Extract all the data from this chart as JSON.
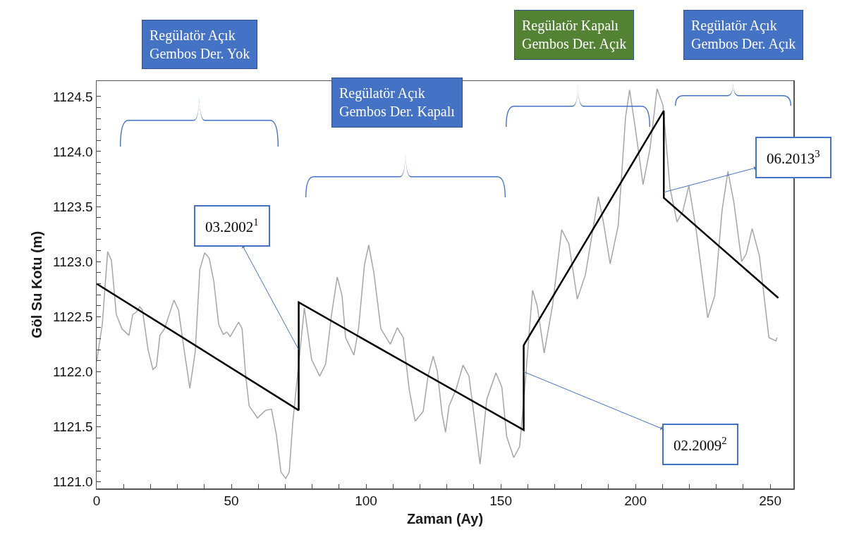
{
  "chart_data": {
    "type": "line",
    "xlabel": "Zaman (Ay)",
    "ylabel": "Göl Su Kotu (m)",
    "xlim": [
      0,
      258.6
    ],
    "ylim": [
      1120.94,
      1124.64
    ],
    "xticks": [
      0,
      {
        "value": 10,
        "label": null
      },
      {
        "value": 20,
        "label": null
      },
      {
        "value": 30,
        "label": null
      },
      {
        "value": 40,
        "label": null
      },
      50,
      {
        "value": 60,
        "label": null
      },
      {
        "value": 70,
        "label": null
      },
      {
        "value": 80,
        "label": null
      },
      {
        "value": 90,
        "label": null
      },
      100,
      {
        "value": 110,
        "label": null
      },
      {
        "value": 120,
        "label": null
      },
      {
        "value": 130,
        "label": null
      },
      {
        "value": 140,
        "label": null
      },
      150,
      {
        "value": 160,
        "label": null
      },
      {
        "value": 170,
        "label": null
      },
      {
        "value": 180,
        "label": null
      },
      {
        "value": 190,
        "label": null
      },
      200,
      {
        "value": 210,
        "label": null
      },
      {
        "value": 220,
        "label": null
      },
      {
        "value": 230,
        "label": null
      },
      {
        "value": 240,
        "label": null
      },
      250
    ],
    "yticks": [
      {
        "value": 1121.0,
        "label": "1121.0"
      },
      {
        "value": 1121.1,
        "label": null
      },
      {
        "value": 1121.2,
        "label": null
      },
      {
        "value": 1121.3,
        "label": null
      },
      {
        "value": 1121.4,
        "label": null
      },
      1121.5,
      {
        "value": 1121.6,
        "label": null
      },
      {
        "value": 1121.7,
        "label": null
      },
      {
        "value": 1121.8,
        "label": null
      },
      {
        "value": 1121.9,
        "label": null
      },
      {
        "value": 1122.0,
        "label": "1122.0"
      },
      {
        "value": 1122.1,
        "label": null
      },
      {
        "value": 1122.2,
        "label": null
      },
      {
        "value": 1122.3,
        "label": null
      },
      {
        "value": 1122.4,
        "label": null
      },
      1122.5,
      {
        "value": 1122.6,
        "label": null
      },
      {
        "value": 1122.7,
        "label": null
      },
      {
        "value": 1122.8,
        "label": null
      },
      {
        "value": 1122.9,
        "label": null
      },
      {
        "value": 1123.0,
        "label": "1123.0"
      },
      {
        "value": 1123.1,
        "label": null
      },
      {
        "value": 1123.2,
        "label": null
      },
      {
        "value": 1123.3,
        "label": null
      },
      {
        "value": 1123.4,
        "label": null
      },
      1123.5,
      {
        "value": 1123.6,
        "label": null
      },
      {
        "value": 1123.7,
        "label": null
      },
      {
        "value": 1123.8,
        "label": null
      },
      {
        "value": 1123.9,
        "label": null
      },
      {
        "value": 1124.0,
        "label": "1124.0"
      },
      {
        "value": 1124.1,
        "label": null
      },
      {
        "value": 1124.2,
        "label": null
      },
      {
        "value": 1124.3,
        "label": null
      },
      {
        "value": 1124.4,
        "label": null
      },
      1124.5
    ],
    "series": [
      {
        "color": "#a6a6a6",
        "x": [
          0,
          2.1,
          4.1,
          5.5,
          7.3,
          9.4,
          12,
          13.4,
          14.7,
          16,
          17,
          19.1,
          20.9,
          22.2,
          23.5,
          25.2,
          28.7,
          30.4,
          32.6,
          34.6,
          36.6,
          38.3,
          40.1,
          41.8,
          43.5,
          45.3,
          47,
          48.3,
          49.6,
          51.3,
          52.7,
          54,
          55.3,
          56.6,
          59.7,
          62.7,
          64.9,
          66.7,
          68.4,
          70.2,
          71.5,
          72.8,
          75,
          77.1,
          79.8,
          82.8,
          85,
          87.2,
          89.3,
          91.1,
          92.4,
          95.5,
          97.2,
          99.4,
          101,
          102.9,
          105.5,
          109,
          111.6,
          113.8,
          116,
          118.2,
          121.2,
          123,
          124.9,
          126.4,
          128.2,
          129.5,
          130.8,
          133.4,
          136,
          138.2,
          140.4,
          142.3,
          144.8,
          148.2,
          150.4,
          152.2,
          154.8,
          157,
          158.7,
          161.8,
          163.5,
          166.1,
          169.2,
          172.6,
          175.3,
          178.4,
          181.4,
          186.2,
          188,
          190.6,
          193.6,
          196.3,
          197.8,
          199.7,
          202.8,
          205.4,
          208,
          210.2,
          212.8,
          215.4,
          217.6,
          219.8,
          222.5,
          226.8,
          229.4,
          232.1,
          234.3,
          236.5,
          239.4,
          241.1,
          243.3,
          246,
          249.5,
          252.1,
          252.5
        ],
        "values": [
          1122.09,
          1122.43,
          1123.09,
          1123.01,
          1122.52,
          1122.39,
          1122.33,
          1122.52,
          1122.54,
          1122.59,
          1122.56,
          1122.2,
          1122.02,
          1122.05,
          1122.33,
          1122.39,
          1122.65,
          1122.56,
          1122.18,
          1121.85,
          1122.18,
          1122.93,
          1123.08,
          1123.03,
          1122.82,
          1122.43,
          1122.34,
          1122.36,
          1122.32,
          1122.39,
          1122.45,
          1122.39,
          1121.97,
          1121.69,
          1121.58,
          1121.65,
          1121.66,
          1121.43,
          1121.09,
          1121.03,
          1121.09,
          1121.54,
          1122.07,
          1122.58,
          1122.11,
          1121.96,
          1122.07,
          1122.52,
          1122.86,
          1122.69,
          1122.31,
          1122.15,
          1122.39,
          1122.97,
          1123.15,
          1122.9,
          1122.39,
          1122.25,
          1122.4,
          1122.31,
          1121.84,
          1121.55,
          1121.64,
          1121.96,
          1122.14,
          1122.01,
          1121.62,
          1121.45,
          1121.69,
          1121.84,
          1122.06,
          1121.96,
          1121.54,
          1121.16,
          1121.75,
          1121.99,
          1121.86,
          1121.41,
          1121.22,
          1121.32,
          1121.79,
          1122.74,
          1122.6,
          1122.17,
          1122.6,
          1123.29,
          1123.16,
          1122.66,
          1122.88,
          1123.59,
          1123.37,
          1122.98,
          1123.33,
          1124.31,
          1124.56,
          1124.25,
          1123.7,
          1124.03,
          1124.57,
          1124.42,
          1123.67,
          1123.36,
          1123.46,
          1123.69,
          1123.29,
          1122.49,
          1122.69,
          1123.46,
          1123.82,
          1123.54,
          1123.0,
          1123.07,
          1123.3,
          1123.05,
          1122.31,
          1122.28,
          1122.31
        ]
      },
      {
        "color": "#000000",
        "x": [
          0,
          75,
          75,
          158.5,
          158.5,
          210.5,
          210.5,
          253
        ],
        "values": [
          1122.8,
          1121.65,
          1122.63,
          1121.47,
          1122.24,
          1124.37,
          1123.58,
          1122.67
        ]
      }
    ],
    "annotations": [
      "Regülatör Açık\nGembos Der. Yok",
      "Regülatör Açık\nGembos Der. Kapalı",
      "Regülatör Kapalı\nGembos Der. Açık",
      "Regülatör Açık\nGembos Der. Açık",
      {
        "text": "03.2002$^{1}$",
        "x": 75,
        "y": 1122.2
      },
      {
        "text": "02.2009$^{2}$",
        "x": 158.5,
        "y": 1122.0
      },
      {
        "text": "06.2013$^{3}$",
        "x": 210.5,
        "y": 1123.63
      }
    ],
    "marker": "none",
    "line_style": "solid",
    "grid": false
  }
}
